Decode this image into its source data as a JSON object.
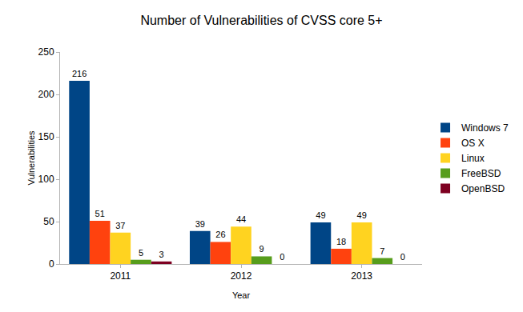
{
  "chart_data": {
    "type": "bar",
    "title": "Number of Vulnerabilities of CVSS core 5+",
    "x_label": "Year",
    "y_label": "Vulnerabilities",
    "categories": [
      "2011",
      "2012",
      "2013"
    ],
    "series": [
      {
        "name": "Windows 7",
        "color": "#004586",
        "values": [
          216,
          39,
          49
        ]
      },
      {
        "name": "OS X",
        "color": "#ff420e",
        "values": [
          51,
          26,
          18
        ]
      },
      {
        "name": "Linux",
        "color": "#ffd320",
        "values": [
          37,
          44,
          49
        ]
      },
      {
        "name": "FreeBSD",
        "color": "#579d1c",
        "values": [
          5,
          9,
          7
        ]
      },
      {
        "name": "OpenBSD",
        "color": "#7e0021",
        "values": [
          3,
          0,
          0
        ]
      }
    ],
    "ylim": [
      0,
      250
    ],
    "yticks": [
      0,
      50,
      100,
      150,
      200,
      250
    ],
    "grid": false,
    "legend": "right",
    "data_labels": true
  }
}
